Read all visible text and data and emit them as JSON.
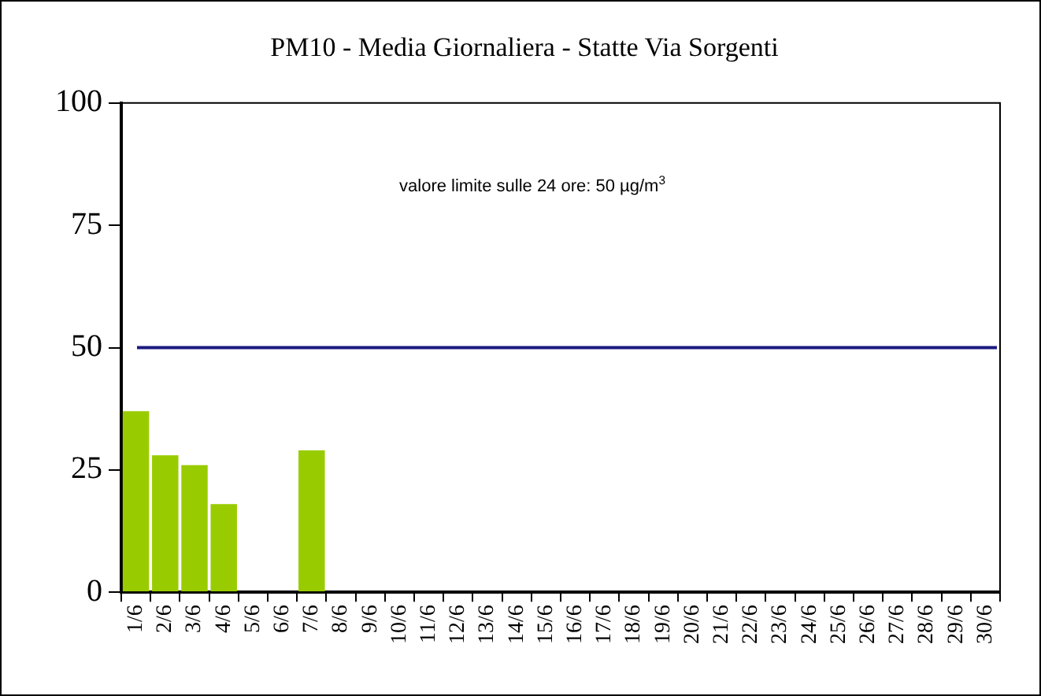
{
  "chart_data": {
    "type": "bar",
    "title": "PM10 - Media Giornaliera - Statte Via Sorgenti",
    "categories": [
      "1/6",
      "2/6",
      "3/6",
      "4/6",
      "5/6",
      "6/6",
      "7/6",
      "8/6",
      "9/6",
      "10/6",
      "11/6",
      "12/6",
      "13/6",
      "14/6",
      "15/6",
      "16/6",
      "17/6",
      "18/6",
      "19/6",
      "20/6",
      "21/6",
      "22/6",
      "23/6",
      "24/6",
      "25/6",
      "26/6",
      "27/6",
      "28/6",
      "29/6",
      "30/6"
    ],
    "values": [
      37,
      28,
      26,
      18,
      null,
      null,
      29,
      null,
      null,
      null,
      null,
      null,
      null,
      null,
      null,
      null,
      null,
      null,
      null,
      null,
      null,
      null,
      null,
      null,
      null,
      null,
      null,
      null,
      null,
      null
    ],
    "color": "#99cc00",
    "ylim": [
      0,
      100
    ],
    "yticks": [
      0,
      25,
      50,
      75,
      100
    ],
    "grid": false,
    "legend": false,
    "annotations": [
      "valore limite sulle 24 ore: 50 µg/m$^{3}$"
    ],
    "ref_lines": [
      {
        "axis": "y",
        "value": 50,
        "color": "#1a1a80"
      }
    ]
  }
}
